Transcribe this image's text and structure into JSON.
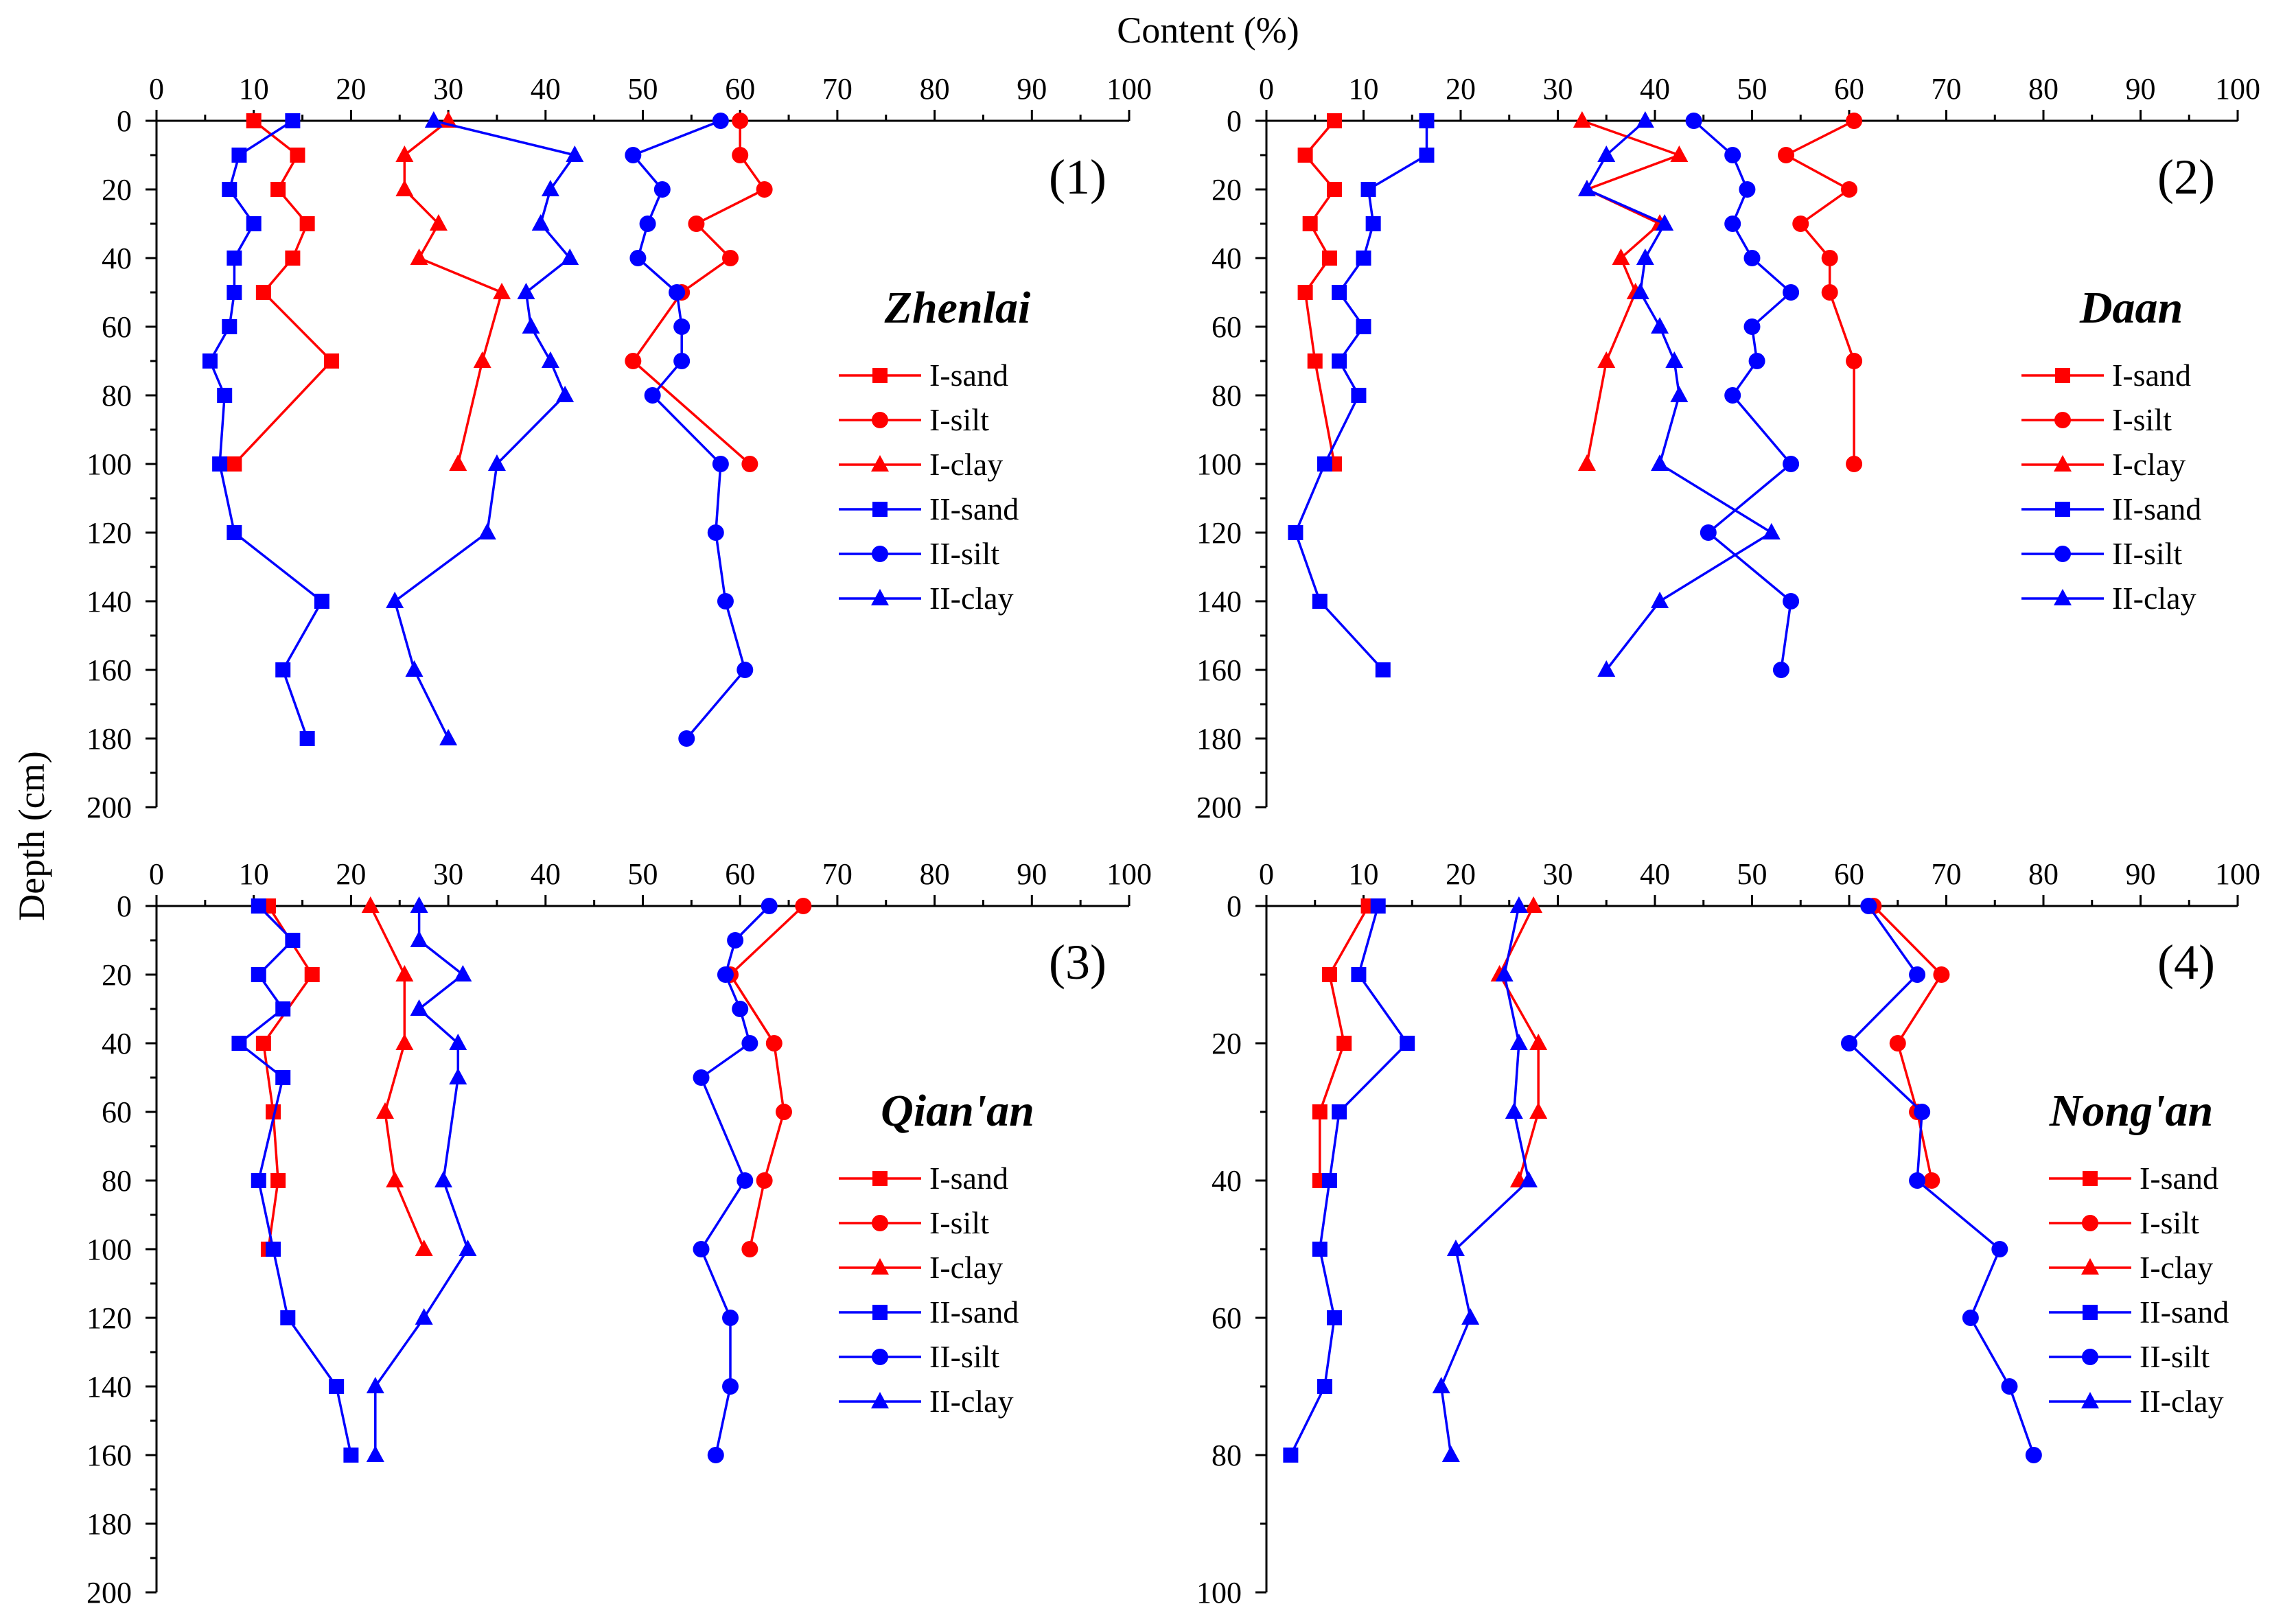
{
  "figure": {
    "x_axis_title": "Content (%)",
    "y_axis_title": "Depth (cm)",
    "colors": {
      "I": "#ff0000",
      "II": "#0000ff"
    }
  },
  "chart_data": [
    {
      "type": "line",
      "panel_label": "(1)",
      "site": "Zhenlai",
      "xlabel": "Content (%)",
      "ylabel": "Depth (cm)",
      "xlim": [
        0,
        100
      ],
      "ylim": [
        0,
        200
      ],
      "x_ticks": [
        "0",
        "10",
        "20",
        "30",
        "40",
        "50",
        "60",
        "70",
        "80",
        "90",
        "100"
      ],
      "y_ticks": [
        "0",
        "20",
        "40",
        "60",
        "80",
        "100",
        "120",
        "140",
        "160",
        "180",
        "200"
      ],
      "legend": [
        "I-sand",
        "I-silt",
        "I-clay",
        "II-sand",
        "II-silt",
        "II-clay"
      ],
      "series": [
        {
          "name": "I-sand",
          "group": "I",
          "marker": "square",
          "x": [
            10,
            14.5,
            12.5,
            15.5,
            14,
            11,
            18,
            8
          ],
          "y": [
            0,
            10,
            20,
            30,
            40,
            50,
            70,
            100
          ]
        },
        {
          "name": "I-silt",
          "group": "I",
          "marker": "circle",
          "x": [
            60,
            60,
            62.5,
            55.5,
            59,
            54,
            49,
            61
          ],
          "y": [
            0,
            10,
            20,
            30,
            40,
            50,
            70,
            100
          ]
        },
        {
          "name": "I-clay",
          "group": "I",
          "marker": "triangle",
          "x": [
            30,
            25.5,
            25.5,
            29,
            27,
            35.5,
            33.5,
            31
          ],
          "y": [
            0,
            10,
            20,
            30,
            40,
            50,
            70,
            100
          ]
        },
        {
          "name": "II-sand",
          "group": "II",
          "marker": "square",
          "x": [
            14,
            8.5,
            7.5,
            10,
            8,
            8,
            7.5,
            5.5,
            7,
            6.5,
            8,
            17,
            13,
            15.5
          ],
          "y": [
            0,
            10,
            20,
            30,
            40,
            50,
            60,
            70,
            80,
            100,
            120,
            140,
            160,
            180
          ]
        },
        {
          "name": "II-silt",
          "group": "II",
          "marker": "circle",
          "x": [
            58,
            49,
            52,
            50.5,
            49.5,
            53.5,
            54,
            54,
            51,
            58,
            57.5,
            58.5,
            60.5,
            54.5
          ],
          "y": [
            0,
            10,
            20,
            30,
            40,
            50,
            60,
            70,
            80,
            100,
            120,
            140,
            160,
            180
          ]
        },
        {
          "name": "II-clay",
          "group": "II",
          "marker": "triangle",
          "x": [
            28.5,
            43,
            40.5,
            39.5,
            42.5,
            38,
            38.5,
            40.5,
            42,
            35,
            34,
            24.5,
            26.5,
            30
          ],
          "y": [
            0,
            10,
            20,
            30,
            40,
            50,
            60,
            70,
            80,
            100,
            120,
            140,
            160,
            180
          ]
        }
      ]
    },
    {
      "type": "line",
      "panel_label": "(2)",
      "site": "Daan",
      "xlabel": "Content (%)",
      "ylabel": "Depth (cm)",
      "xlim": [
        0,
        100
      ],
      "ylim": [
        0,
        200
      ],
      "x_ticks": [
        "0",
        "10",
        "20",
        "30",
        "40",
        "50",
        "60",
        "70",
        "80",
        "90",
        "100"
      ],
      "y_ticks": [
        "0",
        "20",
        "40",
        "60",
        "80",
        "100",
        "120",
        "140",
        "160",
        "180",
        "200"
      ],
      "legend": [
        "I-sand",
        "I-silt",
        "I-clay",
        "II-sand",
        "II-silt",
        "II-clay"
      ],
      "series": [
        {
          "name": "I-sand",
          "group": "I",
          "marker": "square",
          "x": [
            7,
            4,
            7,
            4.5,
            6.5,
            4,
            5,
            7
          ],
          "y": [
            0,
            10,
            20,
            30,
            40,
            50,
            70,
            100
          ]
        },
        {
          "name": "I-silt",
          "group": "I",
          "marker": "circle",
          "x": [
            60.5,
            53.5,
            60,
            55,
            58,
            58,
            60.5,
            60.5
          ],
          "y": [
            0,
            10,
            20,
            30,
            40,
            50,
            70,
            100
          ]
        },
        {
          "name": "I-clay",
          "group": "I",
          "marker": "triangle",
          "x": [
            32.5,
            42.5,
            33,
            40.5,
            36.5,
            38,
            35,
            33
          ],
          "y": [
            0,
            10,
            20,
            30,
            40,
            50,
            70,
            100
          ]
        },
        {
          "name": "II-sand",
          "group": "II",
          "marker": "square",
          "x": [
            16.5,
            16.5,
            10.5,
            11,
            10,
            7.5,
            10,
            7.5,
            9.5,
            6,
            3,
            5.5,
            12
          ],
          "y": [
            0,
            10,
            20,
            30,
            40,
            50,
            60,
            70,
            80,
            100,
            120,
            140,
            160
          ]
        },
        {
          "name": "II-silt",
          "group": "II",
          "marker": "circle",
          "x": [
            44,
            48,
            49.5,
            48,
            50,
            54,
            50,
            50.5,
            48,
            54,
            45.5,
            54,
            53
          ],
          "y": [
            0,
            10,
            20,
            30,
            40,
            50,
            60,
            70,
            80,
            100,
            120,
            140,
            160
          ]
        },
        {
          "name": "II-clay",
          "group": "II",
          "marker": "triangle",
          "x": [
            39,
            35,
            33,
            41,
            39,
            38.5,
            40.5,
            42,
            42.5,
            40.5,
            52,
            40.5,
            35
          ],
          "y": [
            0,
            10,
            20,
            30,
            40,
            50,
            60,
            70,
            80,
            100,
            120,
            140,
            160
          ]
        }
      ]
    },
    {
      "type": "line",
      "panel_label": "(3)",
      "site": "Qian'an",
      "xlabel": "Content (%)",
      "ylabel": "Depth (cm)",
      "xlim": [
        0,
        100
      ],
      "ylim": [
        0,
        200
      ],
      "x_ticks": [
        "0",
        "10",
        "20",
        "30",
        "40",
        "50",
        "60",
        "70",
        "80",
        "90",
        "100"
      ],
      "y_ticks": [
        "0",
        "20",
        "40",
        "60",
        "80",
        "100",
        "120",
        "140",
        "160",
        "180",
        "200"
      ],
      "legend": [
        "I-sand",
        "I-silt",
        "I-clay",
        "II-sand",
        "II-silt",
        "II-clay"
      ],
      "series": [
        {
          "name": "I-sand",
          "group": "I",
          "marker": "square",
          "x": [
            11.5,
            16,
            11,
            12,
            12.5,
            11.5
          ],
          "y": [
            0,
            20,
            40,
            60,
            80,
            100
          ]
        },
        {
          "name": "I-silt",
          "group": "I",
          "marker": "circle",
          "x": [
            66.5,
            59,
            63.5,
            64.5,
            62.5,
            61
          ],
          "y": [
            0,
            20,
            40,
            60,
            80,
            100
          ]
        },
        {
          "name": "I-clay",
          "group": "I",
          "marker": "triangle",
          "x": [
            22,
            25.5,
            25.5,
            23.5,
            24.5,
            27.5
          ],
          "y": [
            0,
            20,
            40,
            60,
            80,
            100
          ]
        },
        {
          "name": "II-sand",
          "group": "II",
          "marker": "square",
          "x": [
            10.5,
            14,
            10.5,
            13,
            8.5,
            13,
            10.5,
            12,
            13.5,
            18.5,
            20
          ],
          "y": [
            0,
            10,
            20,
            30,
            40,
            50,
            80,
            100,
            120,
            140,
            160
          ]
        },
        {
          "name": "II-silt",
          "group": "II",
          "marker": "circle",
          "x": [
            63,
            59.5,
            58.5,
            60,
            61,
            56,
            60.5,
            56,
            59,
            59,
            57.5
          ],
          "y": [
            0,
            10,
            20,
            30,
            40,
            50,
            80,
            100,
            120,
            140,
            160
          ]
        },
        {
          "name": "II-clay",
          "group": "II",
          "marker": "triangle",
          "x": [
            27,
            27,
            31.5,
            27,
            31,
            31,
            29.5,
            32,
            27.5,
            22.5,
            22.5
          ],
          "y": [
            0,
            10,
            20,
            30,
            40,
            50,
            80,
            100,
            120,
            140,
            160
          ]
        }
      ]
    },
    {
      "type": "line",
      "panel_label": "(4)",
      "site": "Nong'an",
      "xlabel": "Content (%)",
      "ylabel": "Depth (cm)",
      "xlim": [
        0,
        100
      ],
      "ylim": [
        0,
        100
      ],
      "x_ticks": [
        "0",
        "10",
        "20",
        "30",
        "40",
        "50",
        "60",
        "70",
        "80",
        "90",
        "100"
      ],
      "y_ticks": [
        "0",
        "20",
        "40",
        "60",
        "80",
        "100"
      ],
      "legend": [
        "I-sand",
        "I-silt",
        "I-clay",
        "II-sand",
        "II-silt",
        "II-clay"
      ],
      "series": [
        {
          "name": "I-sand",
          "group": "I",
          "marker": "square",
          "x": [
            10.5,
            6.5,
            8,
            5.5,
            5.5
          ],
          "y": [
            0,
            10,
            20,
            30,
            40
          ]
        },
        {
          "name": "I-silt",
          "group": "I",
          "marker": "circle",
          "x": [
            62.5,
            69.5,
            65,
            67,
            68.5
          ],
          "y": [
            0,
            10,
            20,
            30,
            40
          ]
        },
        {
          "name": "I-clay",
          "group": "I",
          "marker": "triangle",
          "x": [
            27.5,
            24,
            28,
            28,
            26
          ],
          "y": [
            0,
            10,
            20,
            30,
            40
          ]
        },
        {
          "name": "II-sand",
          "group": "II",
          "marker": "square",
          "x": [
            11.5,
            9.5,
            14.5,
            7.5,
            6.5,
            5.5,
            7,
            6,
            2.5
          ],
          "y": [
            0,
            10,
            20,
            30,
            40,
            50,
            60,
            70,
            80
          ]
        },
        {
          "name": "II-silt",
          "group": "II",
          "marker": "circle",
          "x": [
            62,
            67,
            60,
            67.5,
            67,
            75.5,
            72.5,
            76.5,
            79
          ],
          "y": [
            0,
            10,
            20,
            30,
            40,
            50,
            60,
            70,
            80
          ]
        },
        {
          "name": "II-clay",
          "group": "II",
          "marker": "triangle",
          "x": [
            26,
            24.5,
            26,
            25.5,
            27,
            19.5,
            21,
            18,
            19
          ],
          "y": [
            0,
            10,
            20,
            30,
            40,
            50,
            60,
            70,
            80
          ]
        }
      ]
    }
  ]
}
